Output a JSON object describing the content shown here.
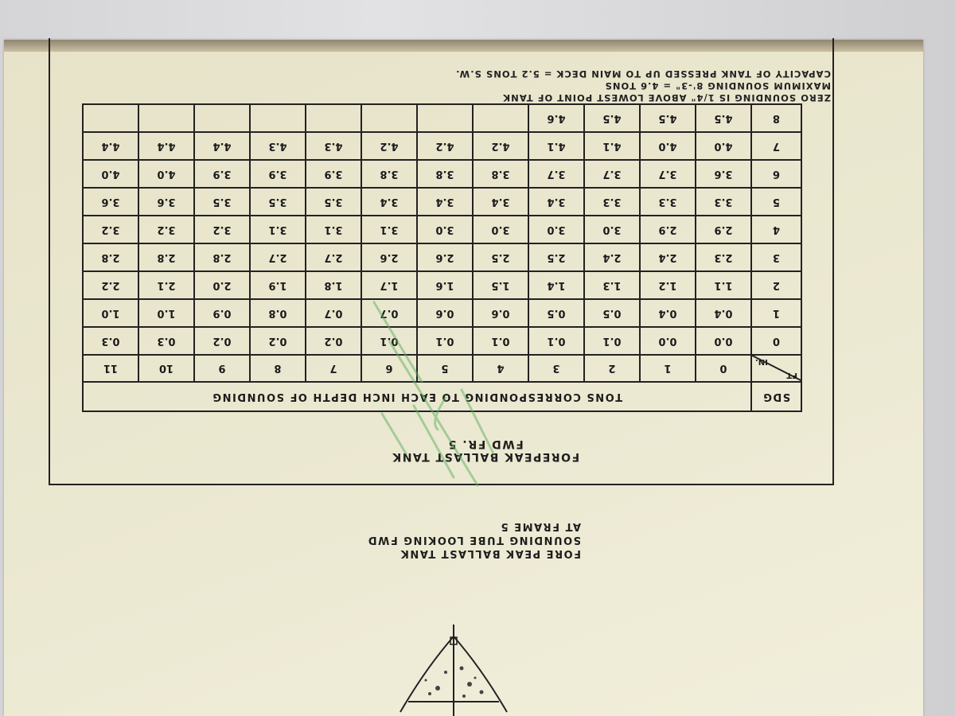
{
  "document": {
    "title_line1": "FOREPEAK BALLAST TANK",
    "title_line2": "FWD FR. 5",
    "table": {
      "sdg_label": "SDG",
      "caption": "TONS CORRESPONDING TO EACH INCH DEPTH OF SOUNDING",
      "ft_label": "FT",
      "in_label": "IN.",
      "inches": [
        "0",
        "1",
        "2",
        "3",
        "4",
        "5",
        "6",
        "7",
        "8",
        "9",
        "10",
        "11"
      ],
      "rows": [
        {
          "ft": "0",
          "values": [
            "0.0",
            "0.0",
            "0.1",
            "0.1",
            "0.1",
            "0.1",
            "0.1",
            "0.2",
            "0.2",
            "0.2",
            "0.3",
            "0.3"
          ]
        },
        {
          "ft": "1",
          "values": [
            "0.4",
            "0.4",
            "0.5",
            "0.5",
            "0.6",
            "0.6",
            "0.7",
            "0.7",
            "0.8",
            "0.9",
            "1.0",
            "1.0"
          ]
        },
        {
          "ft": "2",
          "values": [
            "1.1",
            "1.2",
            "1.3",
            "1.4",
            "1.5",
            "1.6",
            "1.7",
            "1.8",
            "1.9",
            "2.0",
            "2.1",
            "2.2"
          ]
        },
        {
          "ft": "3",
          "values": [
            "2.3",
            "2.4",
            "2.4",
            "2.5",
            "2.5",
            "2.6",
            "2.6",
            "2.7",
            "2.7",
            "2.8",
            "2.8",
            "2.8"
          ]
        },
        {
          "ft": "4",
          "values": [
            "2.9",
            "2.9",
            "3.0",
            "3.0",
            "3.0",
            "3.0",
            "3.1",
            "3.1",
            "3.1",
            "3.2",
            "3.2",
            "3.2"
          ]
        },
        {
          "ft": "5",
          "values": [
            "3.3",
            "3.3",
            "3.3",
            "3.4",
            "3.4",
            "3.4",
            "3.4",
            "3.5",
            "3.5",
            "3.5",
            "3.6",
            "3.6"
          ]
        },
        {
          "ft": "6",
          "values": [
            "3.6",
            "3.7",
            "3.7",
            "3.7",
            "3.8",
            "3.8",
            "3.8",
            "3.9",
            "3.9",
            "3.9",
            "4.0",
            "4.0"
          ]
        },
        {
          "ft": "7",
          "values": [
            "4.0",
            "4.0",
            "4.1",
            "4.1",
            "4.2",
            "4.2",
            "4.2",
            "4.3",
            "4.3",
            "4.4",
            "4.4",
            "4.4"
          ]
        },
        {
          "ft": "8",
          "values": [
            "4.5",
            "4.5",
            "4.5",
            "4.6",
            "",
            "",
            "",
            "",
            "",
            "",
            "",
            ""
          ]
        }
      ]
    },
    "notes": [
      "ZERO SOUNDING IS 1/4\" ABOVE LOWEST POINT OF TANK",
      "MAXIMUM SOUNDING 8'-3\" = 4.6 TONS",
      "CAPACITY OF TANK PRESSED UP TO MAIN DECK = 5.2 TONS S.W."
    ],
    "sub_caption": [
      "FORE PEAK BALLAST TANK",
      "SOUNDING TUBE LOOKING FWD",
      "AT FRAME 5"
    ],
    "orientation": "upside-down (rotated 180 degrees)",
    "colors": {
      "paper": "#ece9d3",
      "ink": "#1e1e1e",
      "stamp": "#5fb060"
    }
  }
}
